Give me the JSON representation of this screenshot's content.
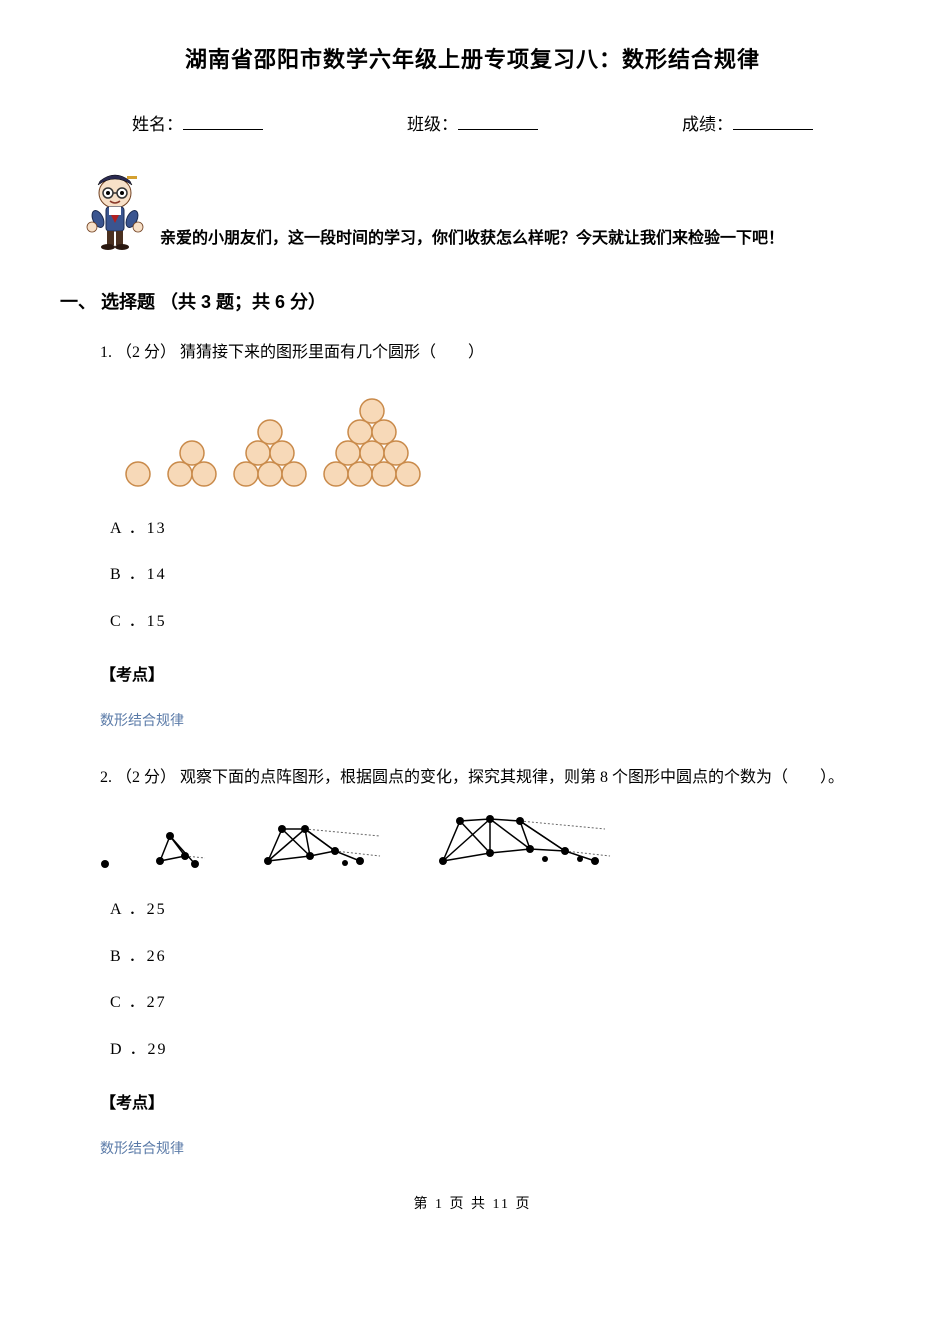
{
  "title": "湖南省邵阳市数学六年级上册专项复习八：数形结合规律",
  "info": {
    "name_label": "姓名：",
    "class_label": "班级：",
    "score_label": "成绩："
  },
  "greeting": "亲爱的小朋友们，这一段时间的学习，你们收获怎么样呢？今天就让我们来检验一下吧！",
  "section1": {
    "heading": "一、 选择题 （共 3 题；共 6 分）",
    "q1": {
      "text": "1.  （2 分） 猜猜接下来的图形里面有几个圆形（　　）",
      "options": {
        "a": "A ．13",
        "b": "B ．14",
        "c": "C ．15"
      },
      "kaodian_label": "【考点】",
      "kaodian_value": "数形结合规律",
      "triangles": {
        "circle_fill": "#f7d9b8",
        "circle_stroke": "#c98a4a",
        "stroke_width": 1.5,
        "radius": 12,
        "groups": [
          [
            1
          ],
          [
            2,
            1
          ],
          [
            3,
            2,
            1
          ],
          [
            4,
            3,
            2,
            1
          ]
        ]
      }
    },
    "q2": {
      "text": "2.  （2 分） 观察下面的点阵图形，根据圆点的变化，探究其规律，则第 8 个图形中圆点的个数为（　　）。",
      "options": {
        "a": "A ．25",
        "b": "B ．26",
        "c": "C ．27",
        "d": "D ．29"
      },
      "kaodian_label": "【考点】",
      "kaodian_value": "数形结合规律",
      "dots": {
        "dot_fill": "#000000",
        "line_stroke": "#000000",
        "dotted_stroke": "#666666"
      }
    }
  },
  "footer": "第 1 页 共 11 页"
}
